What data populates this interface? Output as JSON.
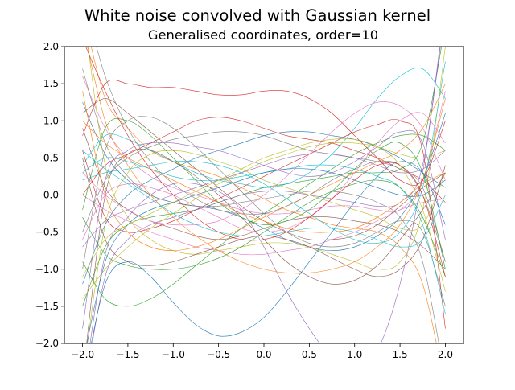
{
  "figure": {
    "suptitle": "White noise convolved with Gaussian kernel",
    "title": "Generalised coordinates, order=10"
  },
  "chart_data": {
    "type": "line",
    "title": "White noise convolved with Gaussian kernel",
    "subtitle": "Generalised coordinates, order=10",
    "xlabel": "",
    "ylabel": "",
    "xlim": [
      -2.2,
      2.2
    ],
    "ylim": [
      -2.0,
      2.0
    ],
    "grid": false,
    "legend": "none",
    "x_ticks": [
      -2.0,
      -1.5,
      -1.0,
      -0.5,
      0.0,
      0.5,
      1.0,
      1.5,
      2.0
    ],
    "x_tick_labels": [
      "−2.0",
      "−1.5",
      "−1.0",
      "−0.5",
      "0.0",
      "0.5",
      "1.0",
      "1.5",
      "2.0"
    ],
    "y_ticks": [
      -2.0,
      -1.5,
      -1.0,
      -0.5,
      0.0,
      0.5,
      1.0,
      1.5,
      2.0
    ],
    "y_tick_labels": [
      "−2.0",
      "−1.5",
      "−1.0",
      "−0.5",
      "0.0",
      "0.5",
      "1.0",
      "1.5",
      "2.0"
    ],
    "colors": [
      "#1f77b4",
      "#ff7f0e",
      "#2ca02c",
      "#d62728",
      "#9467bd",
      "#8c564b",
      "#e377c2",
      "#7f7f7f",
      "#bcbd22",
      "#17becf"
    ],
    "x": [
      -2.0,
      -1.75,
      -1.5,
      -1.25,
      -1.0,
      -0.75,
      -0.5,
      -0.25,
      0.0,
      0.25,
      0.5,
      0.75,
      1.0,
      1.25,
      1.5,
      1.75,
      2.0
    ],
    "series": [
      {
        "values": [
          1.25,
          0.55,
          0.2,
          0.0,
          -0.1,
          -0.15,
          -0.2,
          -0.3,
          -0.45,
          -0.6,
          -0.7,
          -0.75,
          -0.7,
          -0.55,
          -0.3,
          0.2,
          1.1
        ]
      },
      {
        "values": [
          2.5,
          1.3,
          0.9,
          0.6,
          0.45,
          0.35,
          0.25,
          0.1,
          -0.05,
          -0.2,
          -0.3,
          -0.4,
          -0.45,
          -0.5,
          -0.7,
          -1.2,
          -2.6
        ]
      },
      {
        "values": [
          -1.5,
          -0.7,
          -0.4,
          -0.3,
          -0.25,
          -0.2,
          -0.1,
          0.0,
          0.1,
          0.15,
          0.2,
          0.25,
          0.3,
          0.3,
          0.35,
          0.7,
          2.3
        ]
      },
      {
        "values": [
          0.0,
          0.4,
          0.55,
          0.7,
          0.85,
          1.0,
          1.05,
          1.0,
          0.9,
          0.8,
          0.75,
          0.7,
          0.6,
          0.5,
          0.35,
          0.2,
          -0.1
        ]
      },
      {
        "values": [
          -2.7,
          -0.8,
          -0.3,
          0.0,
          0.15,
          0.15,
          0.05,
          -0.2,
          -0.7,
          -1.3,
          -1.8,
          -2.2,
          -2.4,
          -2.1,
          -1.2,
          0.3,
          2.5
        ]
      },
      {
        "values": [
          0.9,
          0.1,
          -0.2,
          -0.35,
          -0.45,
          -0.55,
          -0.6,
          -0.55,
          -0.45,
          -0.35,
          -0.3,
          -0.3,
          -0.35,
          -0.4,
          -0.5,
          -0.7,
          -1.0
        ]
      },
      {
        "values": [
          1.6,
          0.9,
          0.5,
          0.25,
          0.1,
          0.0,
          -0.1,
          -0.2,
          -0.25,
          -0.25,
          -0.2,
          -0.15,
          -0.15,
          -0.2,
          -0.2,
          0.2,
          1.4
        ]
      },
      {
        "values": [
          -0.5,
          0.2,
          0.5,
          0.65,
          0.75,
          0.8,
          0.85,
          0.85,
          0.8,
          0.7,
          0.6,
          0.55,
          0.5,
          0.45,
          0.35,
          0.1,
          -0.9
        ]
      },
      {
        "values": [
          -2.5,
          -0.4,
          0.3,
          0.55,
          0.6,
          0.55,
          0.45,
          0.35,
          0.2,
          0.1,
          0.0,
          -0.1,
          -0.2,
          -0.3,
          -0.45,
          -0.4,
          0.3
        ]
      },
      {
        "values": [
          0.4,
          0.8,
          0.75,
          0.6,
          0.45,
          0.3,
          0.2,
          0.15,
          0.1,
          0.15,
          0.3,
          0.55,
          0.9,
          1.3,
          1.6,
          1.7,
          1.3
        ]
      },
      {
        "values": [
          -1.2,
          -0.4,
          0.0,
          0.2,
          0.35,
          0.5,
          0.6,
          0.7,
          0.8,
          0.85,
          0.85,
          0.8,
          0.75,
          0.65,
          0.5,
          0.3,
          0.1
        ]
      },
      {
        "values": [
          2.3,
          1.0,
          0.4,
          0.0,
          -0.3,
          -0.55,
          -0.75,
          -0.9,
          -1.0,
          -1.05,
          -1.05,
          -1.0,
          -0.9,
          -0.7,
          -0.4,
          0.2,
          1.3
        ]
      },
      {
        "values": [
          -0.9,
          -1.4,
          -1.5,
          -1.4,
          -1.2,
          -0.95,
          -0.7,
          -0.45,
          -0.25,
          -0.05,
          0.15,
          0.35,
          0.55,
          0.7,
          0.8,
          0.8,
          0.6
        ]
      },
      {
        "values": [
          0.6,
          -0.3,
          -0.5,
          -0.45,
          -0.35,
          -0.2,
          -0.05,
          0.1,
          0.25,
          0.4,
          0.55,
          0.7,
          0.85,
          0.95,
          1.0,
          0.6,
          -1.8
        ]
      },
      {
        "values": [
          -2.8,
          -1.1,
          -0.6,
          -0.4,
          -0.3,
          -0.2,
          -0.1,
          0.0,
          0.05,
          0.05,
          0.0,
          -0.05,
          -0.1,
          -0.15,
          -0.1,
          0.4,
          2.6
        ]
      },
      {
        "values": [
          1.1,
          1.3,
          1.1,
          0.85,
          0.6,
          0.35,
          0.1,
          -0.15,
          -0.35,
          -0.5,
          -0.6,
          -0.6,
          -0.55,
          -0.4,
          -0.15,
          0.1,
          0.3
        ]
      },
      {
        "values": [
          0.0,
          -0.2,
          -0.35,
          -0.5,
          -0.6,
          -0.7,
          -0.75,
          -0.8,
          -0.8,
          -0.75,
          -0.7,
          -0.6,
          -0.5,
          -0.35,
          -0.2,
          -0.1,
          -0.05
        ]
      },
      {
        "values": [
          -1.0,
          0.6,
          1.0,
          1.05,
          0.9,
          0.65,
          0.35,
          0.05,
          -0.25,
          -0.5,
          -0.65,
          -0.7,
          -0.65,
          -0.5,
          -0.35,
          -0.5,
          -1.5
        ]
      },
      {
        "values": [
          2.6,
          0.4,
          -0.3,
          -0.6,
          -0.75,
          -0.8,
          -0.75,
          -0.7,
          -0.65,
          -0.65,
          -0.7,
          -0.8,
          -0.9,
          -1.0,
          -0.9,
          -0.2,
          2.0
        ]
      },
      {
        "values": [
          0.3,
          0.5,
          0.45,
          0.35,
          0.25,
          0.2,
          0.2,
          0.25,
          0.3,
          0.35,
          0.4,
          0.4,
          0.35,
          0.25,
          0.1,
          -0.4,
          -1.6
        ]
      },
      {
        "values": [
          -2.3,
          -0.9,
          -0.4,
          -0.2,
          -0.1,
          0.0,
          0.1,
          0.2,
          0.3,
          0.35,
          0.35,
          0.3,
          0.2,
          0.1,
          0.0,
          0.0,
          0.2
        ]
      },
      {
        "values": [
          1.4,
          0.0,
          -0.5,
          -0.7,
          -0.75,
          -0.7,
          -0.6,
          -0.45,
          -0.3,
          -0.15,
          0.0,
          0.15,
          0.3,
          0.45,
          0.6,
          0.9,
          1.5
        ]
      },
      {
        "values": [
          -0.3,
          -0.8,
          -0.95,
          -1.0,
          -1.0,
          -0.95,
          -0.85,
          -0.7,
          -0.5,
          -0.3,
          -0.1,
          0.05,
          0.15,
          0.2,
          0.1,
          -0.3,
          -1.1
        ]
      },
      {
        "values": [
          0.8,
          1.5,
          1.5,
          1.45,
          1.45,
          1.4,
          1.35,
          1.35,
          1.4,
          1.4,
          1.3,
          1.1,
          0.8,
          0.5,
          0.2,
          0.2,
          1.0
        ]
      },
      {
        "values": [
          -1.8,
          0.2,
          0.6,
          0.7,
          0.7,
          0.65,
          0.6,
          0.5,
          0.4,
          0.3,
          0.25,
          0.3,
          0.45,
          0.65,
          0.85,
          0.7,
          -0.6
        ]
      },
      {
        "values": [
          0.5,
          -0.6,
          -0.9,
          -0.95,
          -0.9,
          -0.8,
          -0.7,
          -0.6,
          -0.55,
          -0.6,
          -0.7,
          -0.85,
          -1.0,
          -1.1,
          -1.0,
          -0.6,
          0.4
        ]
      },
      {
        "values": [
          -0.6,
          0.0,
          0.15,
          0.1,
          0.0,
          -0.15,
          -0.3,
          -0.45,
          -0.5,
          -0.45,
          -0.3,
          -0.05,
          0.3,
          0.7,
          1.0,
          1.1,
          0.7
        ]
      },
      {
        "values": [
          2.7,
          1.6,
          0.9,
          0.45,
          0.15,
          -0.05,
          -0.2,
          -0.25,
          -0.25,
          -0.15,
          0.0,
          0.2,
          0.35,
          0.45,
          0.4,
          0.0,
          -0.9
        ]
      },
      {
        "values": [
          -1.4,
          -1.0,
          -0.7,
          -0.45,
          -0.25,
          -0.05,
          0.15,
          0.3,
          0.45,
          0.55,
          0.65,
          0.7,
          0.7,
          0.65,
          0.55,
          0.5,
          0.6
        ]
      },
      {
        "values": [
          0.2,
          0.3,
          0.35,
          0.4,
          0.45,
          0.45,
          0.4,
          0.3,
          0.15,
          -0.05,
          -0.25,
          -0.45,
          -0.6,
          -0.65,
          -0.5,
          0.1,
          1.8
        ]
      },
      {
        "values": [
          -2.6,
          -1.2,
          -0.9,
          -1.1,
          -1.45,
          -1.75,
          -1.9,
          -1.85,
          -1.65,
          -1.3,
          -0.9,
          -0.5,
          -0.1,
          0.25,
          0.45,
          0.3,
          -0.4
        ]
      },
      {
        "values": [
          1.0,
          0.7,
          0.5,
          0.35,
          0.2,
          0.05,
          -0.1,
          -0.25,
          -0.35,
          -0.45,
          -0.5,
          -0.5,
          -0.45,
          -0.3,
          -0.1,
          0.15,
          0.3
        ]
      },
      {
        "values": [
          -0.2,
          0.9,
          1.0,
          0.8,
          0.5,
          0.2,
          -0.1,
          -0.3,
          -0.4,
          -0.35,
          -0.2,
          0.05,
          0.35,
          0.6,
          0.7,
          0.3,
          -1.0
        ]
      },
      {
        "values": [
          2.1,
          1.4,
          0.8,
          0.35,
          0.0,
          -0.3,
          -0.5,
          -0.6,
          -0.6,
          -0.5,
          -0.3,
          -0.05,
          0.2,
          0.4,
          0.4,
          0.0,
          -1.1
        ]
      },
      {
        "values": [
          -0.7,
          -0.35,
          -0.2,
          -0.1,
          0.0,
          0.1,
          0.2,
          0.3,
          0.4,
          0.5,
          0.55,
          0.55,
          0.5,
          0.4,
          0.3,
          0.35,
          0.6
        ]
      },
      {
        "values": [
          -2.5,
          0.0,
          0.55,
          0.6,
          0.45,
          0.25,
          0.0,
          -0.3,
          -0.6,
          -0.9,
          -1.1,
          -1.2,
          -1.15,
          -0.95,
          -0.6,
          -0.2,
          0.3
        ]
      },
      {
        "values": [
          0.3,
          0.0,
          -0.2,
          -0.35,
          -0.4,
          -0.4,
          -0.35,
          -0.2,
          0.0,
          0.25,
          0.55,
          0.85,
          1.1,
          1.25,
          1.2,
          0.9,
          0.2
        ]
      },
      {
        "values": [
          1.7,
          0.7,
          0.25,
          0.0,
          -0.1,
          -0.15,
          -0.15,
          -0.1,
          -0.05,
          0.0,
          0.05,
          0.05,
          0.0,
          -0.1,
          -0.3,
          -0.9,
          -2.5
        ]
      },
      {
        "values": [
          -1.1,
          -0.6,
          -0.4,
          -0.25,
          -0.1,
          0.05,
          0.2,
          0.35,
          0.5,
          0.6,
          0.7,
          0.75,
          0.75,
          0.65,
          0.4,
          -0.2,
          -1.3
        ]
      },
      {
        "values": [
          0.6,
          0.35,
          0.15,
          -0.05,
          -0.25,
          -0.4,
          -0.5,
          -0.55,
          -0.55,
          -0.5,
          -0.45,
          -0.45,
          -0.5,
          -0.6,
          -0.7,
          -0.6,
          0.0
        ]
      }
    ]
  }
}
